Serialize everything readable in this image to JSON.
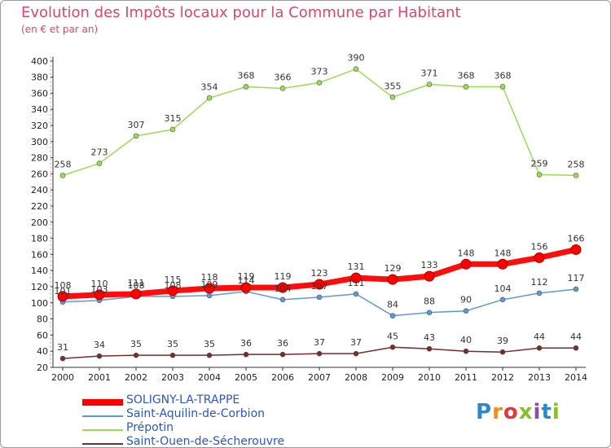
{
  "title": "Evolution des Impôts locaux pour la Commune par Habitant",
  "subtitle": "(en € et par an)",
  "logo": "Proxiti",
  "chart_data": {
    "type": "line",
    "title": "Evolution des Impôts locaux pour la Commune par Habitant",
    "subtitle": "(en € et par an)",
    "x": [
      "2000",
      "2001",
      "2002",
      "2003",
      "2004",
      "2005",
      "2006",
      "2007",
      "2008",
      "2009",
      "2010",
      "2011",
      "2012",
      "2013",
      "2014"
    ],
    "ylim": [
      20,
      400
    ],
    "yticks": [
      20,
      40,
      60,
      80,
      100,
      120,
      140,
      160,
      180,
      200,
      220,
      240,
      260,
      280,
      300,
      320,
      340,
      360,
      380,
      400
    ],
    "grid": "off",
    "legend_position": "bottom-left",
    "series": [
      {
        "name": "SOLIGNY-LA-TRAPPE",
        "color": "#ff0000",
        "values": [
          108,
          110,
          111,
          115,
          118,
          119,
          119,
          123,
          131,
          129,
          133,
          148,
          148,
          156,
          166
        ]
      },
      {
        "name": "Saint-Aquilin-de-Corbion",
        "color": "#5b9bd5",
        "values": [
          101,
          103,
          108,
          108,
          109,
          114,
          104,
          107,
          111,
          84,
          88,
          90,
          104,
          112,
          117
        ]
      },
      {
        "name": "Prépotin",
        "color": "#99dd55",
        "values": [
          258,
          273,
          307,
          315,
          354,
          368,
          366,
          373,
          390,
          355,
          371,
          368,
          368,
          259,
          258
        ]
      },
      {
        "name": "Saint-Ouen-de-Sécherouvre",
        "color": "#7a2b2b",
        "values": [
          31,
          34,
          35,
          35,
          35,
          36,
          36,
          37,
          37,
          45,
          43,
          40,
          39,
          44,
          44
        ]
      }
    ]
  }
}
